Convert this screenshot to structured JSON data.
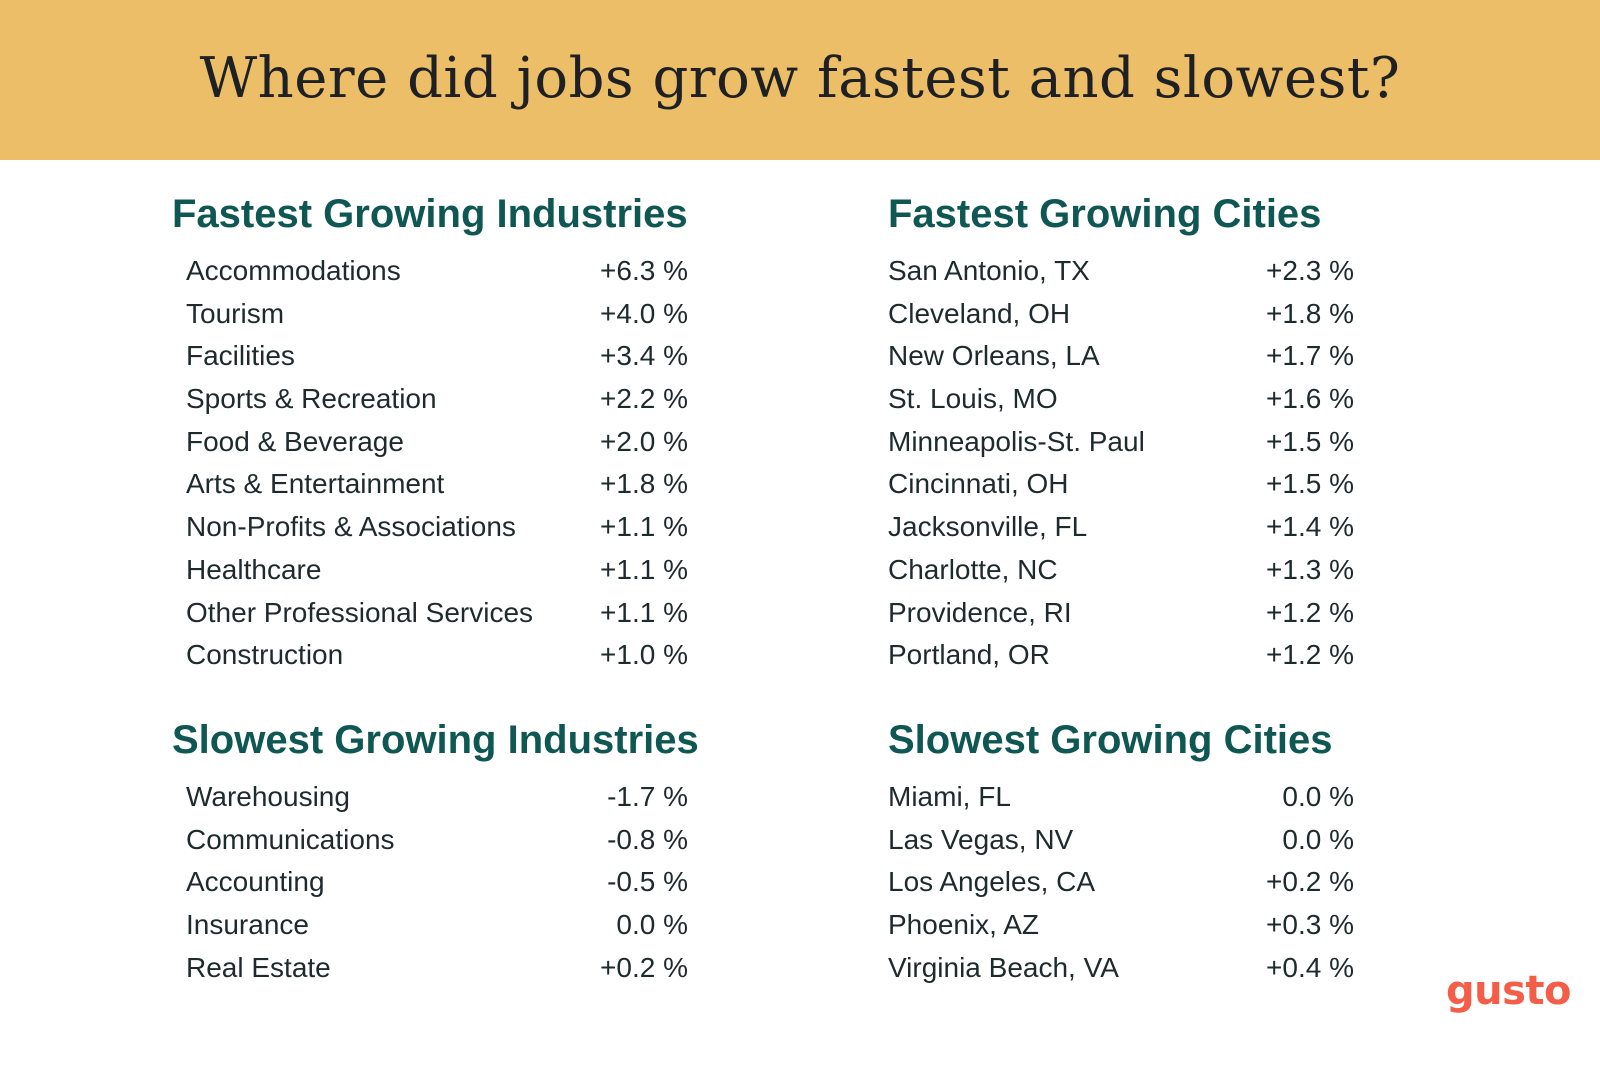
{
  "title": "Where did jobs grow fastest and slowest?",
  "colors": {
    "banner": "#ebbe67",
    "heading": "#0f5753",
    "text": "#1f2a2d",
    "logo": "#f45d48"
  },
  "sections": {
    "fastest_industries": {
      "heading": "Fastest Growing Industries",
      "rows": [
        {
          "label": "Accommodations",
          "value": "+6.3 %"
        },
        {
          "label": "Tourism",
          "value": "+4.0 %"
        },
        {
          "label": "Facilities",
          "value": "+3.4 %"
        },
        {
          "label": "Sports & Recreation",
          "value": "+2.2 %"
        },
        {
          "label": "Food & Beverage",
          "value": "+2.0 %"
        },
        {
          "label": "Arts & Entertainment",
          "value": "+1.8 %"
        },
        {
          "label": "Non-Profits & Associations",
          "value": "+1.1 %"
        },
        {
          "label": "Healthcare",
          "value": "+1.1 %"
        },
        {
          "label": "Other Professional Services",
          "value": "+1.1 %"
        },
        {
          "label": "Construction",
          "value": "+1.0 %"
        }
      ]
    },
    "fastest_cities": {
      "heading": "Fastest Growing Cities",
      "rows": [
        {
          "label": "San Antonio, TX",
          "value": "+2.3 %"
        },
        {
          "label": "Cleveland, OH",
          "value": "+1.8 %"
        },
        {
          "label": "New Orleans, LA",
          "value": "+1.7 %"
        },
        {
          "label": "St. Louis, MO",
          "value": "+1.6 %"
        },
        {
          "label": "Minneapolis-St. Paul",
          "value": "+1.5 %"
        },
        {
          "label": "Cincinnati, OH",
          "value": "+1.5 %"
        },
        {
          "label": "Jacksonville, FL",
          "value": "+1.4 %"
        },
        {
          "label": "Charlotte, NC",
          "value": "+1.3 %"
        },
        {
          "label": "Providence, RI",
          "value": "+1.2 %"
        },
        {
          "label": "Portland, OR",
          "value": "+1.2 %"
        }
      ]
    },
    "slowest_industries": {
      "heading": "Slowest Growing Industries",
      "rows": [
        {
          "label": "Warehousing",
          "value": "-1.7 %"
        },
        {
          "label": "Communications",
          "value": "-0.8 %"
        },
        {
          "label": "Accounting",
          "value": "-0.5 %"
        },
        {
          "label": "Insurance",
          "value": "0.0 %"
        },
        {
          "label": "Real Estate",
          "value": "+0.2 %"
        }
      ]
    },
    "slowest_cities": {
      "heading": "Slowest Growing Cities",
      "rows": [
        {
          "label": "Miami, FL",
          "value": "0.0 %"
        },
        {
          "label": "Las Vegas, NV",
          "value": "0.0 %"
        },
        {
          "label": "Los Angeles, CA",
          "value": "+0.2 %"
        },
        {
          "label": "Phoenix, AZ",
          "value": "+0.3 %"
        },
        {
          "label": "Virginia Beach, VA",
          "value": "+0.4 %"
        }
      ]
    }
  },
  "logo": "gusto"
}
